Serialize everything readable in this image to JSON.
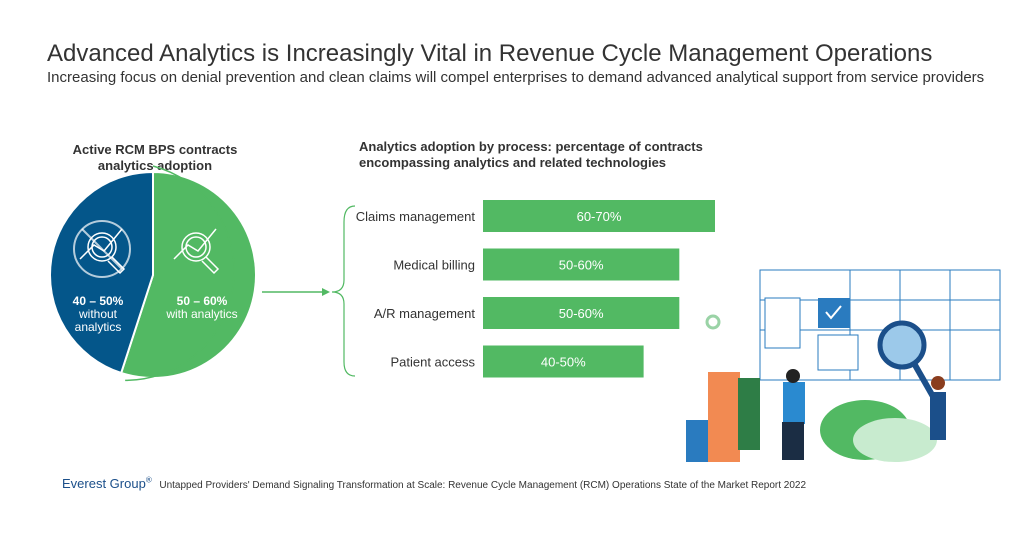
{
  "title": "Advanced Analytics is Increasingly Vital in Revenue Cycle Management Operations",
  "subtitle": "Increasing focus on denial prevention and clean claims will compel enterprises to demand advanced analytical support from service providers",
  "footer": {
    "brand": "Everest Group",
    "registered": "®",
    "source": "Untapped Providers' Demand Signaling Transformation at Scale: Revenue Cycle Management (RCM) Operations State of the Market Report 2022"
  },
  "colors": {
    "green": "#52b963",
    "blue": "#04568a",
    "text": "#333333"
  },
  "chart_data": [
    {
      "type": "pie",
      "title": "Active RCM BPS contracts analytics adoption",
      "slices": [
        {
          "label": "with analytics",
          "range": "50 – 60%",
          "value": 55,
          "color": "#52b963",
          "icon": "magnifier-chart-icon"
        },
        {
          "label": "without analytics",
          "label_lines": [
            "without",
            "analytics"
          ],
          "range": "40 – 50%",
          "value": 45,
          "color": "#04568a",
          "icon": "magnifier-chart-crossed-icon"
        }
      ]
    },
    {
      "type": "bar",
      "orientation": "horizontal",
      "title": "Analytics adoption by process: percentage of contracts encompassing analytics and related technologies",
      "categories": [
        "Claims management",
        "Medical billing",
        "A/R  management",
        "Patient access"
      ],
      "data_labels": [
        "60-70%",
        "50-60%",
        "50-60%",
        "40-50%"
      ],
      "values": [
        65,
        55,
        55,
        45
      ],
      "color": "#52b963"
    }
  ]
}
